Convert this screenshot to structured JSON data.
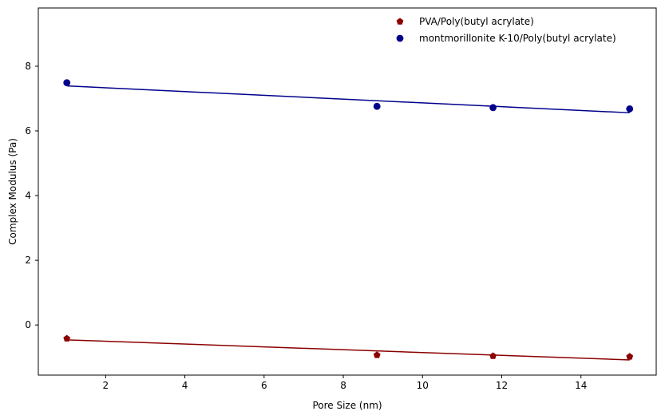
{
  "chart_data": {
    "type": "scatter",
    "xlabel": "Pore Size (nm)",
    "ylabel": "Complex Modulus (Pa)",
    "xlim": [
      0.3,
      15.9
    ],
    "ylim": [
      -1.55,
      9.8
    ],
    "xticks": [
      2,
      4,
      6,
      8,
      10,
      12,
      14
    ],
    "yticks": [
      0,
      2,
      4,
      6,
      8
    ],
    "grid": false,
    "legend_position": "top-right",
    "series": [
      {
        "name": "PVA/Poly(butyl acrylate)",
        "marker": "pentagon",
        "color": "#8b0000",
        "x": [
          1.02,
          8.85,
          11.78,
          15.23
        ],
        "y": [
          -0.42,
          -0.93,
          -0.96,
          -0.98
        ],
        "fit_line": {
          "x": [
            1.02,
            15.23
          ],
          "y": [
            -0.46,
            -1.08
          ]
        }
      },
      {
        "name": "montmorillonite K-10/Poly(butyl acrylate)",
        "marker": "circle",
        "color": "#00008b",
        "x": [
          1.02,
          8.85,
          11.78,
          15.23
        ],
        "y": [
          7.49,
          6.76,
          6.72,
          6.68
        ],
        "fit_line": {
          "x": [
            1.02,
            15.23
          ],
          "y": [
            7.39,
            6.56
          ]
        }
      }
    ]
  }
}
